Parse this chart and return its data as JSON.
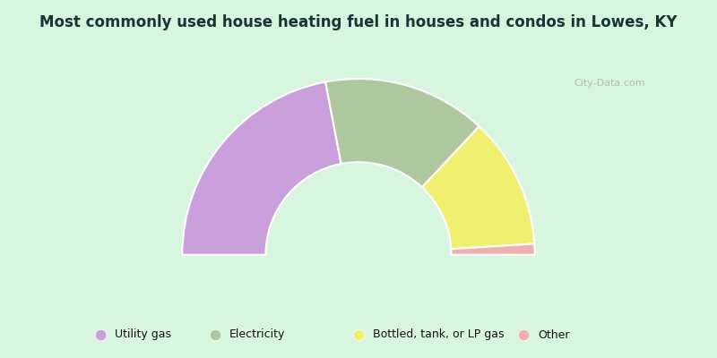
{
  "title": "Most commonly used house heating fuel in houses and condos in Lowes, KY",
  "segments": [
    {
      "label": "Utility gas",
      "value": 44.0,
      "color": "#c9a0dc"
    },
    {
      "label": "Electricity",
      "value": 30.0,
      "color": "#b0c8a0"
    },
    {
      "label": "Bottled, tank, or LP gas",
      "value": 24.0,
      "color": "#f0f070"
    },
    {
      "label": "Other",
      "value": 2.0,
      "color": "#f0b0b0"
    }
  ],
  "background_color": "#d8f5e0",
  "title_color": "#1a3333",
  "legend_background": "#00e8e8",
  "watermark": "City-Data.com",
  "outer_r": 0.38,
  "inner_r": 0.2
}
